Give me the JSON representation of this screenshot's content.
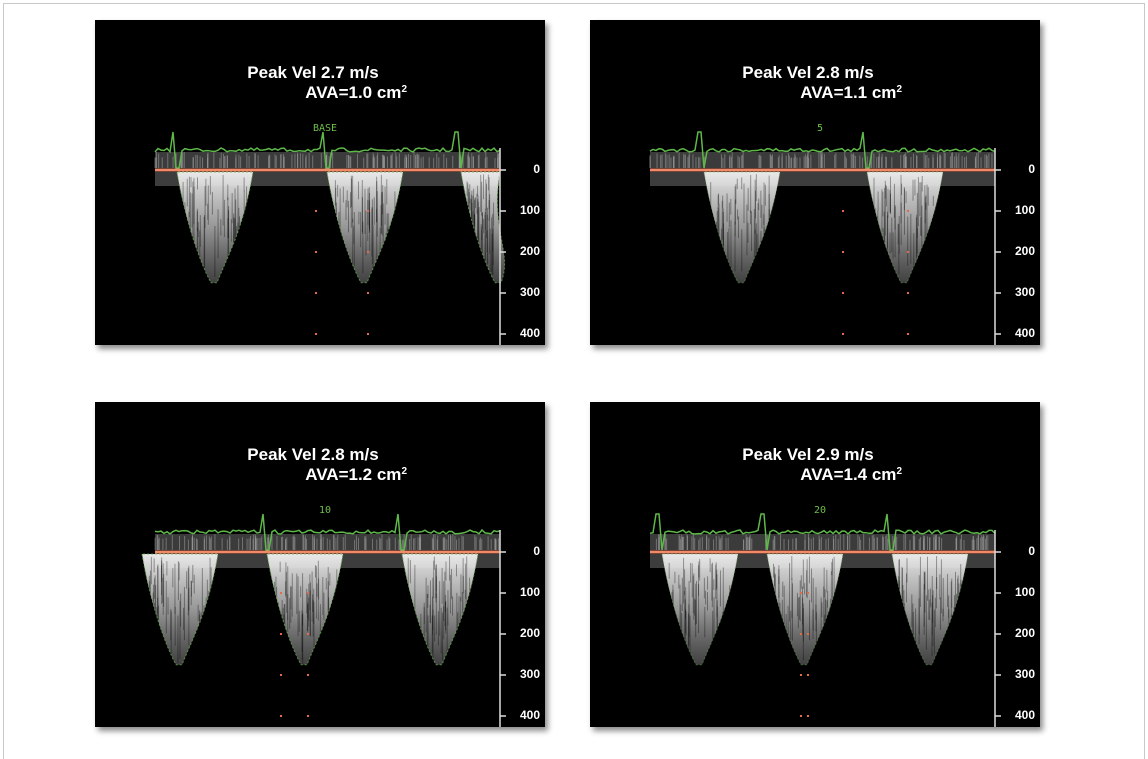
{
  "panels": [
    {
      "peak_velocity": "Peak Vel 2.7 m/s",
      "ava": "AVA=1.0 cm",
      "ava_exponent": "2",
      "stage": "BASE",
      "scale": [
        "0",
        "100",
        "200",
        "300",
        "400"
      ]
    },
    {
      "peak_velocity": "Peak Vel 2.8 m/s",
      "ava": "AVA=1.1 cm",
      "ava_exponent": "2",
      "stage": "5",
      "scale": [
        "0",
        "100",
        "200",
        "300",
        "400"
      ]
    },
    {
      "peak_velocity": "Peak Vel 2.8 m/s",
      "ava": "AVA=1.2 cm",
      "ava_exponent": "2",
      "stage": "10",
      "scale": [
        "0",
        "100",
        "200",
        "300",
        "400"
      ]
    },
    {
      "peak_velocity": "Peak Vel 2.9 m/s",
      "ava": "AVA=1.4 cm",
      "ava_exponent": "2",
      "stage": "20",
      "scale": [
        "0",
        "100",
        "200",
        "300",
        "400"
      ]
    }
  ]
}
